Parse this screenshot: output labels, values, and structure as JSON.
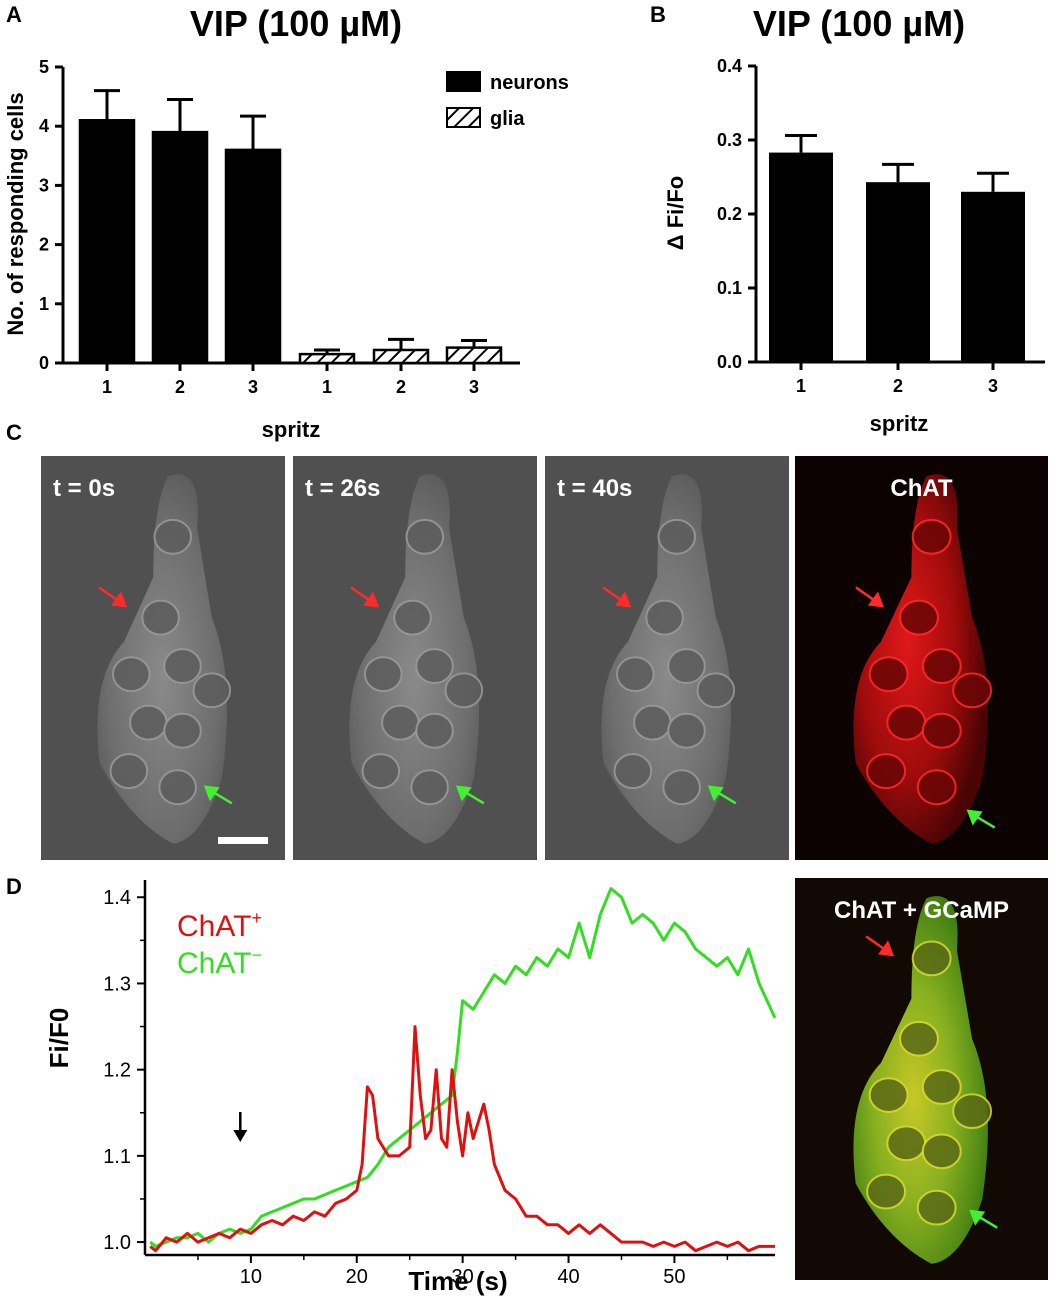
{
  "panels": {
    "A": "A",
    "B": "B",
    "C": "C",
    "D": "D"
  },
  "chart_data": [
    {
      "id": "A",
      "type": "bar",
      "title": "VIP (100 µM)",
      "xlabel": "spritz",
      "ylabel": "No. of responding cells",
      "ylim": [
        0,
        5
      ],
      "yticks": [
        "0",
        "1",
        "2",
        "3",
        "4",
        "5"
      ],
      "legend": {
        "position": "top-right"
      },
      "series": [
        {
          "name": "neurons",
          "pattern": "solid",
          "categories": [
            "1",
            "2",
            "3"
          ],
          "values": [
            4.1,
            3.9,
            3.6
          ],
          "errors": [
            0.5,
            0.55,
            0.57
          ]
        },
        {
          "name": "glia",
          "pattern": "hatched",
          "categories": [
            "1",
            "2",
            "3"
          ],
          "values": [
            0.15,
            0.22,
            0.26
          ],
          "errors": [
            0.07,
            0.18,
            0.12
          ]
        }
      ]
    },
    {
      "id": "B",
      "type": "bar",
      "title": "VIP (100 µM)",
      "xlabel": "spritz",
      "ylabel": "Δ Fi/Fo",
      "ylim": [
        0,
        0.4
      ],
      "yticks": [
        "0.0",
        "0.1",
        "0.2",
        "0.3",
        "0.4"
      ],
      "categories": [
        "1",
        "2",
        "3"
      ],
      "values": [
        0.283,
        0.243,
        0.23
      ],
      "errors": [
        0.023,
        0.024,
        0.025
      ]
    },
    {
      "id": "D",
      "type": "line",
      "xlabel": "Time (s)",
      "ylabel": "Fi/F0",
      "xlim": [
        0,
        59.5
      ],
      "ylim": [
        0.985,
        1.42
      ],
      "xticks": [
        "10",
        "20",
        "30",
        "40",
        "50"
      ],
      "yticks": [
        "1.0",
        "1.1",
        "1.2",
        "1.3",
        "1.4"
      ],
      "arrow_time": 9,
      "series": [
        {
          "name": "ChAT",
          "superscript": "+",
          "color": "#e01010",
          "x": [
            0.5,
            1,
            2,
            3,
            4,
            5,
            6,
            7,
            8,
            9,
            10,
            11,
            12,
            13,
            14,
            15,
            16,
            17,
            18,
            19,
            20,
            20.5,
            21,
            21.5,
            22,
            23,
            24,
            25,
            25.5,
            26,
            26.5,
            27,
            27.5,
            28,
            28.5,
            29,
            29.5,
            30,
            30.5,
            31,
            31.5,
            32,
            32.5,
            33,
            34,
            35,
            36,
            37,
            38,
            39,
            40,
            41,
            42,
            43,
            44,
            45,
            46,
            47,
            48,
            49,
            50,
            51,
            52,
            53,
            54,
            55,
            56,
            57,
            58,
            59.5
          ],
          "y": [
            0.995,
            0.99,
            1.005,
            1.0,
            1.01,
            1.0,
            1.005,
            1.01,
            1.005,
            1.015,
            1.01,
            1.02,
            1.025,
            1.02,
            1.03,
            1.025,
            1.035,
            1.03,
            1.045,
            1.05,
            1.06,
            1.09,
            1.18,
            1.17,
            1.12,
            1.1,
            1.1,
            1.11,
            1.25,
            1.17,
            1.12,
            1.13,
            1.2,
            1.12,
            1.11,
            1.2,
            1.14,
            1.1,
            1.15,
            1.12,
            1.14,
            1.16,
            1.13,
            1.09,
            1.06,
            1.05,
            1.03,
            1.03,
            1.02,
            1.02,
            1.01,
            1.02,
            1.01,
            1.02,
            1.01,
            1.0,
            1.0,
            1.0,
            0.995,
            1.0,
            0.995,
            1.0,
            0.99,
            0.995,
            1.0,
            0.995,
            1.0,
            0.99,
            0.995,
            0.995
          ]
        },
        {
          "name": "ChAT",
          "superscript": "−",
          "color": "#33dd22",
          "x": [
            0.5,
            1,
            2,
            3,
            4,
            5,
            6,
            7,
            8,
            9,
            10,
            11,
            12,
            13,
            14,
            15,
            16,
            17,
            18,
            19,
            20,
            21,
            22,
            23,
            24,
            25,
            26,
            27,
            28,
            29,
            29.5,
            30,
            31,
            32,
            33,
            34,
            35,
            36,
            37,
            38,
            39,
            40,
            41,
            42,
            43,
            44,
            45,
            46,
            47,
            48,
            49,
            50,
            51,
            52,
            53,
            54,
            55,
            56,
            57,
            58,
            59.5
          ],
          "y": [
            1.0,
            0.995,
            1.0,
            1.005,
            1.005,
            1.01,
            1.0,
            1.01,
            1.015,
            1.01,
            1.015,
            1.03,
            1.035,
            1.04,
            1.045,
            1.05,
            1.05,
            1.055,
            1.06,
            1.065,
            1.07,
            1.075,
            1.09,
            1.11,
            1.12,
            1.13,
            1.14,
            1.15,
            1.16,
            1.17,
            1.22,
            1.28,
            1.27,
            1.29,
            1.31,
            1.3,
            1.32,
            1.31,
            1.33,
            1.32,
            1.34,
            1.33,
            1.37,
            1.33,
            1.38,
            1.41,
            1.4,
            1.37,
            1.38,
            1.37,
            1.35,
            1.37,
            1.36,
            1.34,
            1.33,
            1.32,
            1.33,
            1.31,
            1.34,
            1.3,
            1.26
          ]
        }
      ]
    }
  ],
  "micrographs": [
    {
      "label": "t = 0s",
      "type": "gray",
      "scalebar": true
    },
    {
      "label": "t = 26s",
      "type": "gray",
      "scalebar": false
    },
    {
      "label": "t = 40s",
      "type": "gray",
      "scalebar": false
    },
    {
      "label": "ChAT",
      "type": "red",
      "scalebar": false
    },
    {
      "label": "ChAT + GCaMP",
      "type": "merge",
      "scalebar": false
    }
  ]
}
